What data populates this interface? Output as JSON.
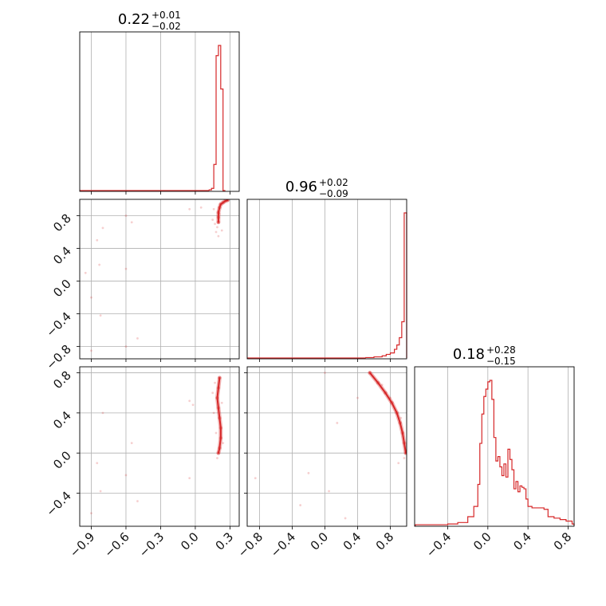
{
  "chart_data": {
    "type": "corner",
    "color": "#d62728",
    "grid": true,
    "parameters": [
      {
        "title": {
          "median": "0.22",
          "plus": "+0.01",
          "minus": "−0.02"
        },
        "range": [
          -1.0,
          0.38
        ],
        "ticks": [
          -0.9,
          -0.6,
          -0.3,
          0.0,
          0.3
        ],
        "tick_labels": [
          "−0.9",
          "−0.6",
          "−0.3",
          "0.0",
          "0.3"
        ],
        "hist": {
          "edges": [
            0.12,
            0.14,
            0.16,
            0.18,
            0.2,
            0.22,
            0.24,
            0.26
          ],
          "counts": [
            0.5,
            1.5,
            18,
            93,
            100,
            70,
            0
          ]
        }
      },
      {
        "title": {
          "median": "0.96",
          "plus": "+0.02",
          "minus": "−0.09"
        },
        "range": [
          -0.95,
          1.0
        ],
        "ticks": [
          -0.8,
          -0.4,
          0.0,
          0.4,
          0.8
        ],
        "tick_labels": [
          "−0.8",
          "−0.4",
          "0.0",
          "0.4",
          "0.8"
        ],
        "hist": {
          "edges": [
            0.5,
            0.6,
            0.7,
            0.75,
            0.8,
            0.85,
            0.88,
            0.91,
            0.94,
            0.97,
            1.0
          ],
          "counts": [
            0.3,
            0.8,
            1.5,
            2.5,
            3.5,
            6,
            9,
            14,
            25,
            100
          ]
        }
      },
      {
        "title": {
          "median": "0.18",
          "plus": "+0.28",
          "minus": "−0.15"
        },
        "range": [
          -0.73,
          0.86
        ],
        "ticks": [
          -0.4,
          0.0,
          0.4,
          0.8
        ],
        "tick_labels": [
          "−0.4",
          "0.0",
          "0.4",
          "0.8"
        ],
        "hist": {
          "edges": [
            -0.72,
            -0.6,
            -0.4,
            -0.3,
            -0.2,
            -0.14,
            -0.1,
            -0.08,
            -0.06,
            -0.04,
            -0.02,
            0.0,
            0.02,
            0.04,
            0.06,
            0.08,
            0.1,
            0.12,
            0.14,
            0.16,
            0.18,
            0.2,
            0.22,
            0.24,
            0.26,
            0.28,
            0.3,
            0.32,
            0.34,
            0.36,
            0.38,
            0.4,
            0.44,
            0.5,
            0.56,
            0.6,
            0.66,
            0.72,
            0.78,
            0.84,
            0.86
          ],
          "counts": [
            0.5,
            0.5,
            1,
            2,
            6,
            13,
            28,
            56,
            76,
            88,
            93,
            98,
            99,
            86,
            60,
            44,
            47,
            40,
            34,
            42,
            33,
            52,
            45,
            38,
            25,
            30,
            23,
            27,
            26,
            25,
            18,
            13,
            12,
            12,
            11,
            6,
            5,
            4,
            3,
            1
          ]
        }
      }
    ],
    "scatter_2d": [
      {
        "x_param": 0,
        "y_param": 1,
        "core": [
          [
            0.2,
            0.72
          ],
          [
            0.2,
            0.78
          ],
          [
            0.2,
            0.84
          ],
          [
            0.21,
            0.9
          ],
          [
            0.22,
            0.94
          ],
          [
            0.24,
            0.96
          ],
          [
            0.26,
            0.98
          ],
          [
            0.28,
            0.99
          ]
        ],
        "points": [
          [
            0.18,
            0.6
          ],
          [
            0.17,
            0.7
          ],
          [
            0.19,
            0.66
          ],
          [
            0.21,
            0.82
          ],
          [
            0.16,
            0.88
          ],
          [
            0.15,
            0.75
          ],
          [
            0.2,
            0.55
          ],
          [
            0.23,
            0.62
          ],
          [
            0.05,
            0.9
          ],
          [
            -0.05,
            0.88
          ],
          [
            -0.6,
            0.8
          ],
          [
            -0.55,
            0.72
          ],
          [
            -0.8,
            0.65
          ],
          [
            -0.85,
            0.5
          ],
          [
            -0.83,
            0.2
          ],
          [
            -0.6,
            0.15
          ],
          [
            -0.9,
            -0.2
          ],
          [
            -0.82,
            -0.42
          ],
          [
            -0.95,
            0.1
          ],
          [
            -0.5,
            -0.7
          ],
          [
            -0.9,
            -0.85
          ],
          [
            -0.6,
            -0.8
          ]
        ]
      },
      {
        "x_param": 0,
        "y_param": 2,
        "core": [
          [
            0.2,
            0.0
          ],
          [
            0.21,
            0.05
          ],
          [
            0.22,
            0.15
          ],
          [
            0.22,
            0.25
          ],
          [
            0.21,
            0.35
          ],
          [
            0.2,
            0.45
          ],
          [
            0.19,
            0.55
          ],
          [
            0.2,
            0.65
          ],
          [
            0.21,
            0.75
          ]
        ],
        "points": [
          [
            0.17,
            0.7
          ],
          [
            0.16,
            0.4
          ],
          [
            0.18,
            0.2
          ],
          [
            0.24,
            0.1
          ],
          [
            0.19,
            -0.05
          ],
          [
            0.15,
            0.6
          ],
          [
            0.23,
            0.5
          ],
          [
            -0.02,
            0.48
          ],
          [
            -0.05,
            0.52
          ],
          [
            -0.55,
            0.1
          ],
          [
            -0.5,
            -0.48
          ],
          [
            -0.8,
            0.4
          ],
          [
            -0.85,
            -0.1
          ],
          [
            -0.6,
            -0.22
          ],
          [
            -0.82,
            -0.38
          ],
          [
            -0.9,
            -0.6
          ],
          [
            -0.05,
            -0.25
          ]
        ]
      },
      {
        "x_param": 1,
        "y_param": 2,
        "core": [
          [
            0.55,
            0.8
          ],
          [
            0.65,
            0.7
          ],
          [
            0.74,
            0.6
          ],
          [
            0.82,
            0.5
          ],
          [
            0.88,
            0.4
          ],
          [
            0.92,
            0.3
          ],
          [
            0.95,
            0.2
          ],
          [
            0.97,
            0.1
          ],
          [
            0.99,
            0.0
          ]
        ],
        "points": [
          [
            0.9,
            -0.1
          ],
          [
            0.97,
            -0.05
          ],
          [
            0.8,
            0.55
          ],
          [
            0.7,
            0.68
          ],
          [
            0.93,
            0.35
          ],
          [
            -0.85,
            -0.25
          ],
          [
            -0.3,
            -0.52
          ],
          [
            0.05,
            -0.38
          ],
          [
            -0.2,
            -0.2
          ],
          [
            0.0,
            0.8
          ],
          [
            0.4,
            0.55
          ],
          [
            0.15,
            0.3
          ],
          [
            0.25,
            -0.65
          ]
        ]
      }
    ]
  }
}
